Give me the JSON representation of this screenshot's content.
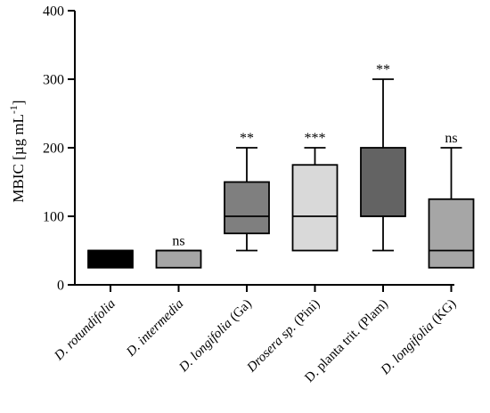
{
  "chart_data": {
    "type": "box",
    "ylabel": "MBIC [µg mL",
    "ylabel_sup": "-1",
    "ylabel_close": "]",
    "ylim": [
      0,
      400
    ],
    "yticks": [
      "0",
      "100",
      "200",
      "300",
      "400"
    ],
    "grid": false,
    "boxes": [
      {
        "label_italic": "D. rotundifolia",
        "label_rest": "",
        "min": 25,
        "q1": 25,
        "median": 50,
        "q3": 50,
        "max": 50,
        "color": "#000000",
        "median_color": "#000000",
        "sig": ""
      },
      {
        "label_italic": "D. intermedia",
        "label_rest": "",
        "min": 25,
        "q1": 25,
        "median": 50,
        "q3": 50,
        "max": 50,
        "color": "#a6a6a6",
        "median_color": "#000000",
        "sig": "ns"
      },
      {
        "label_italic": "D. longifolia",
        "label_rest": " (Ga)",
        "min": 50,
        "q1": 75,
        "median": 100,
        "q3": 150,
        "max": 200,
        "color": "#7f7f7f",
        "median_color": "#000000",
        "sig": "**"
      },
      {
        "label_italic": "Drosera sp.",
        "label_rest": " (Pini)",
        "min": 50,
        "q1": 50,
        "median": 100,
        "q3": 175,
        "max": 200,
        "color": "#d9d9d9",
        "median_color": "#000000",
        "sig": "***"
      },
      {
        "label_italic": "",
        "label_rest": "D. planta trit. (Plam)",
        "min": 50,
        "q1": 100,
        "median": 100,
        "q3": 200,
        "max": 300,
        "color": "#636363",
        "median_color": "#000000",
        "sig": "**"
      },
      {
        "label_italic": "D. longifolia",
        "label_rest": " (KG)",
        "min": 25,
        "q1": 25,
        "median": 50,
        "q3": 125,
        "max": 200,
        "color": "#a6a6a6",
        "median_color": "#000000",
        "sig": "ns"
      }
    ]
  }
}
